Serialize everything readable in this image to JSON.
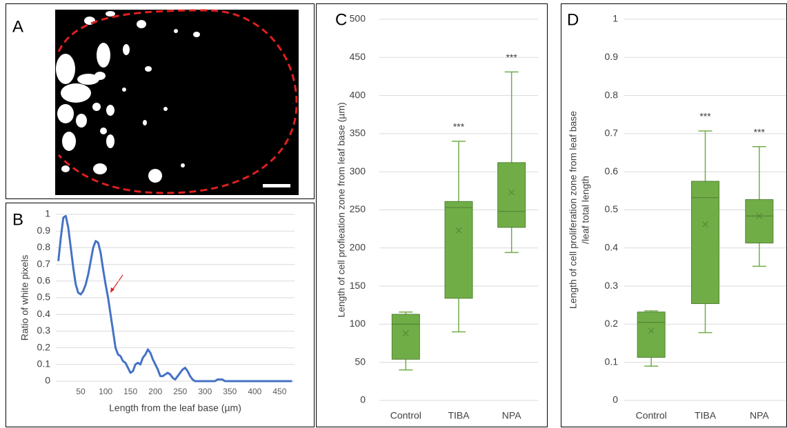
{
  "panel_a": {
    "label": "A"
  },
  "chart_data": [
    {
      "type": "line",
      "label": "B",
      "x_label": "Length from the leaf base (µm)",
      "y_label": "Ratio of white pixels",
      "color": "#4472c4",
      "grid": true,
      "xlim": [
        0,
        480
      ],
      "ylim": [
        0,
        1
      ],
      "xticks": [
        50,
        100,
        150,
        200,
        250,
        300,
        350,
        400,
        450
      ],
      "yticks": [
        0,
        0.1,
        0.2,
        0.3,
        0.4,
        0.5,
        0.6,
        0.7,
        0.8,
        0.9,
        1
      ],
      "x": [
        5,
        10,
        15,
        20,
        25,
        30,
        35,
        40,
        45,
        50,
        55,
        60,
        65,
        70,
        75,
        80,
        85,
        90,
        95,
        100,
        105,
        110,
        115,
        120,
        125,
        130,
        135,
        140,
        145,
        150,
        155,
        160,
        165,
        170,
        175,
        180,
        185,
        190,
        195,
        200,
        205,
        210,
        215,
        220,
        225,
        230,
        235,
        240,
        245,
        250,
        255,
        260,
        265,
        270,
        275,
        280,
        290,
        300,
        320,
        325,
        335,
        340,
        350,
        400,
        475
      ],
      "values": [
        0.72,
        0.86,
        0.98,
        0.99,
        0.92,
        0.8,
        0.68,
        0.58,
        0.53,
        0.52,
        0.54,
        0.58,
        0.64,
        0.72,
        0.8,
        0.84,
        0.83,
        0.77,
        0.67,
        0.58,
        0.5,
        0.4,
        0.3,
        0.2,
        0.16,
        0.15,
        0.12,
        0.11,
        0.08,
        0.05,
        0.06,
        0.1,
        0.11,
        0.1,
        0.14,
        0.16,
        0.19,
        0.17,
        0.13,
        0.1,
        0.07,
        0.03,
        0.03,
        0.04,
        0.05,
        0.04,
        0.02,
        0.01,
        0.03,
        0.05,
        0.07,
        0.08,
        0.06,
        0.03,
        0.01,
        0,
        0,
        0,
        0,
        0.01,
        0.01,
        0,
        0,
        0,
        0
      ]
    },
    {
      "type": "box",
      "label": "C",
      "y_label": "Length of cell profieation zone from leaf base (µm)",
      "color": "#70ad47",
      "grid": true,
      "ylim": [
        0,
        500
      ],
      "yticks": [
        0,
        50,
        100,
        150,
        200,
        250,
        300,
        350,
        400,
        450,
        500
      ],
      "categories": [
        "Control",
        "TIBA",
        "NPA"
      ],
      "significance": [
        null,
        "***",
        "***"
      ],
      "boxes": [
        {
          "min": 40,
          "q1": 54,
          "median": 100,
          "mean": 88,
          "q3": 113,
          "max": 116
        },
        {
          "min": 90,
          "q1": 134,
          "median": 253,
          "mean": 223,
          "q3": 261,
          "max": 340
        },
        {
          "min": 194,
          "q1": 227,
          "median": 248,
          "mean": 273,
          "q3": 312,
          "max": 431
        }
      ]
    },
    {
      "type": "box",
      "label": "D",
      "y_label": [
        "Length of cell proliferation zone from leaf base",
        "/leaf total length"
      ],
      "color": "#70ad47",
      "grid": true,
      "ylim": [
        0,
        1
      ],
      "yticks": [
        0,
        0.1,
        0.2,
        0.3,
        0.4,
        0.5,
        0.6,
        0.7,
        0.8,
        0.9,
        1
      ],
      "categories": [
        "Control",
        "TIBA",
        "NPA"
      ],
      "significance": [
        null,
        "***",
        "***"
      ],
      "boxes": [
        {
          "min": 0.09,
          "q1": 0.113,
          "median": 0.205,
          "mean": 0.183,
          "q3": 0.232,
          "max": 0.235
        },
        {
          "min": 0.178,
          "q1": 0.254,
          "median": 0.532,
          "mean": 0.462,
          "q3": 0.575,
          "max": 0.707
        },
        {
          "min": 0.352,
          "q1": 0.413,
          "median": 0.484,
          "mean": 0.484,
          "q3": 0.527,
          "max": 0.666
        }
      ]
    }
  ]
}
